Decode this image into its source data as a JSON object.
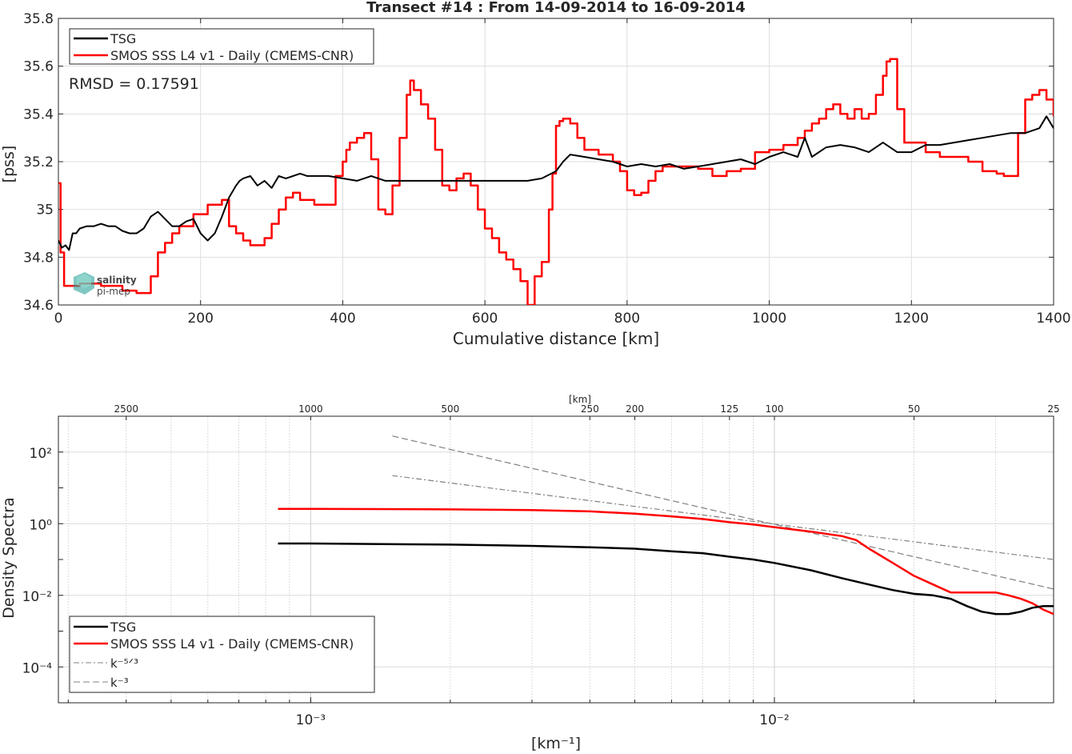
{
  "chart_data": [
    {
      "type": "line",
      "title": "Transect #14 : From 14-09-2014 to 16-09-2014",
      "xlabel": "Cumulative distance [km]",
      "ylabel": "[pss]",
      "xlim": [
        0,
        1400
      ],
      "ylim": [
        34.6,
        35.8
      ],
      "xticks": [
        0,
        200,
        400,
        600,
        800,
        1000,
        1200,
        1400
      ],
      "yticks": [
        34.6,
        34.8,
        35,
        35.2,
        35.4,
        35.6,
        35.8
      ],
      "xtick_labels": [
        "0",
        "200",
        "400",
        "600",
        "800",
        "1000",
        "1200",
        "1400"
      ],
      "ytick_labels": [
        "34.6",
        "34.8",
        "35",
        "35.2",
        "35.4",
        "35.6",
        "35.8"
      ],
      "grid": true,
      "legend_position": "top-left",
      "annotation": "RMSD = 0.17591",
      "watermark": "salinity pi-mep",
      "series": [
        {
          "name": "TSG",
          "color": "#000000",
          "x": [
            0,
            5,
            10,
            15,
            20,
            25,
            30,
            40,
            50,
            60,
            70,
            80,
            90,
            100,
            110,
            120,
            130,
            140,
            150,
            160,
            170,
            180,
            190,
            200,
            210,
            220,
            230,
            240,
            250,
            255,
            260,
            270,
            280,
            290,
            300,
            310,
            320,
            330,
            340,
            350,
            360,
            380,
            400,
            420,
            440,
            460,
            480,
            500,
            520,
            540,
            560,
            580,
            600,
            620,
            640,
            660,
            680,
            700,
            710,
            720,
            740,
            760,
            780,
            800,
            820,
            840,
            860,
            880,
            900,
            920,
            940,
            960,
            980,
            1000,
            1020,
            1040,
            1050,
            1060,
            1080,
            1100,
            1120,
            1140,
            1160,
            1180,
            1200,
            1220,
            1240,
            1260,
            1280,
            1300,
            1320,
            1340,
            1360,
            1380,
            1390,
            1400
          ],
          "y": [
            34.87,
            34.84,
            34.85,
            34.83,
            34.9,
            34.9,
            34.92,
            34.93,
            34.93,
            34.94,
            34.93,
            34.93,
            34.91,
            34.9,
            34.9,
            34.92,
            34.97,
            34.99,
            34.96,
            34.93,
            34.93,
            34.95,
            34.96,
            34.9,
            34.87,
            34.9,
            34.97,
            35.05,
            35.1,
            35.12,
            35.13,
            35.14,
            35.1,
            35.12,
            35.09,
            35.14,
            35.13,
            35.14,
            35.15,
            35.14,
            35.14,
            35.14,
            35.13,
            35.12,
            35.14,
            35.12,
            35.12,
            35.12,
            35.12,
            35.12,
            35.12,
            35.12,
            35.12,
            35.12,
            35.12,
            35.12,
            35.13,
            35.16,
            35.2,
            35.23,
            35.22,
            35.21,
            35.2,
            35.18,
            35.19,
            35.18,
            35.19,
            35.17,
            35.18,
            35.19,
            35.2,
            35.21,
            35.19,
            35.22,
            35.24,
            35.22,
            35.3,
            35.22,
            35.26,
            35.27,
            35.26,
            35.24,
            35.28,
            35.24,
            35.24,
            35.27,
            35.27,
            35.28,
            35.29,
            35.3,
            35.31,
            35.32,
            35.32,
            35.34,
            35.39,
            35.34
          ]
        },
        {
          "name": "SMOS SSS L4 v1 - Daily (CMEMS-CNR)",
          "color": "#ff0000",
          "x": [
            0,
            3,
            8,
            30,
            60,
            90,
            110,
            130,
            140,
            150,
            160,
            170,
            190,
            210,
            230,
            240,
            250,
            260,
            270,
            280,
            290,
            300,
            310,
            320,
            330,
            340,
            360,
            370,
            380,
            390,
            400,
            405,
            410,
            420,
            430,
            440,
            450,
            460,
            470,
            480,
            490,
            495,
            500,
            510,
            520,
            530,
            540,
            550,
            560,
            570,
            580,
            590,
            600,
            610,
            620,
            630,
            640,
            650,
            660,
            670,
            680,
            690,
            695,
            700,
            705,
            710,
            720,
            730,
            740,
            760,
            780,
            790,
            800,
            810,
            820,
            830,
            840,
            850,
            860,
            880,
            900,
            920,
            940,
            960,
            980,
            1000,
            1020,
            1040,
            1050,
            1060,
            1070,
            1080,
            1090,
            1100,
            1110,
            1120,
            1130,
            1140,
            1150,
            1160,
            1165,
            1170,
            1180,
            1190,
            1200,
            1220,
            1240,
            1260,
            1280,
            1300,
            1320,
            1330,
            1340,
            1350,
            1360,
            1370,
            1380,
            1390,
            1400
          ],
          "y": [
            35.11,
            34.82,
            34.68,
            34.69,
            34.68,
            34.66,
            34.65,
            34.72,
            34.82,
            34.86,
            34.9,
            34.93,
            34.98,
            35.02,
            35.04,
            34.93,
            34.9,
            34.87,
            34.85,
            34.85,
            34.88,
            34.94,
            35.0,
            35.05,
            35.07,
            35.04,
            35.02,
            35.02,
            35.02,
            35.14,
            35.2,
            35.25,
            35.28,
            35.3,
            35.32,
            35.21,
            35.0,
            34.98,
            35.1,
            35.3,
            35.48,
            35.54,
            35.5,
            35.44,
            35.38,
            35.25,
            35.1,
            35.08,
            35.13,
            35.15,
            35.1,
            35.0,
            34.92,
            34.88,
            34.82,
            34.79,
            34.75,
            34.7,
            34.6,
            34.72,
            34.78,
            35.0,
            35.15,
            35.35,
            35.37,
            35.38,
            35.36,
            35.3,
            35.25,
            35.23,
            35.2,
            35.16,
            35.08,
            35.06,
            35.07,
            35.12,
            35.16,
            35.18,
            35.18,
            35.18,
            35.17,
            35.14,
            35.16,
            35.17,
            35.24,
            35.25,
            35.27,
            35.3,
            35.33,
            35.36,
            35.38,
            35.42,
            35.44,
            35.4,
            35.38,
            35.42,
            35.38,
            35.4,
            35.48,
            35.56,
            35.62,
            35.63,
            35.42,
            35.28,
            35.28,
            35.24,
            35.22,
            35.22,
            35.2,
            35.16,
            35.15,
            35.14,
            35.14,
            35.32,
            35.46,
            35.48,
            35.5,
            35.46,
            35.39
          ]
        }
      ]
    },
    {
      "type": "line",
      "title": "",
      "xlabel": "[km⁻¹]",
      "ylabel": "Density Spectra",
      "top_axis_label": "[km]",
      "x_scale": "log",
      "y_scale": "log",
      "xlim": [
        0.0002857,
        0.04
      ],
      "ylim": [
        1e-05,
        1000
      ],
      "xticks": [
        0.001,
        0.01
      ],
      "xtick_labels": [
        "10⁻³",
        "10⁻²"
      ],
      "yticks": [
        0.0001,
        0.01,
        1,
        100
      ],
      "ytick_labels": [
        "10⁻⁴",
        "10⁻²",
        "10⁰",
        "10²"
      ],
      "top_ticks_km": [
        2500,
        1000,
        500,
        250,
        200,
        125,
        100,
        50,
        25
      ],
      "top_tick_labels": [
        "2500",
        "1000",
        "500",
        "250",
        "200",
        "125",
        "100",
        "50",
        "25"
      ],
      "grid": true,
      "legend_position": "bottom-left",
      "series": [
        {
          "name": "TSG",
          "color": "#000000",
          "style": "solid",
          "x": [
            0.00085,
            0.001,
            0.002,
            0.003,
            0.004,
            0.005,
            0.006,
            0.007,
            0.008,
            0.009,
            0.01,
            0.012,
            0.014,
            0.016,
            0.018,
            0.02,
            0.022,
            0.024,
            0.026,
            0.028,
            0.03,
            0.032,
            0.034,
            0.036,
            0.038,
            0.04
          ],
          "y": [
            0.28,
            0.28,
            0.26,
            0.24,
            0.22,
            0.2,
            0.17,
            0.15,
            0.12,
            0.1,
            0.08,
            0.05,
            0.03,
            0.02,
            0.014,
            0.011,
            0.01,
            0.008,
            0.005,
            0.0035,
            0.003,
            0.003,
            0.0035,
            0.0045,
            0.005,
            0.005
          ]
        },
        {
          "name": "SMOS SSS L4 v1 - Daily (CMEMS-CNR)",
          "color": "#ff0000",
          "style": "solid",
          "x": [
            0.00085,
            0.001,
            0.002,
            0.003,
            0.004,
            0.005,
            0.006,
            0.007,
            0.008,
            0.009,
            0.01,
            0.012,
            0.014,
            0.015,
            0.016,
            0.018,
            0.02,
            0.022,
            0.024,
            0.026,
            0.028,
            0.03,
            0.032,
            0.034,
            0.036,
            0.038,
            0.04
          ],
          "y": [
            2.6,
            2.6,
            2.5,
            2.4,
            2.2,
            1.9,
            1.6,
            1.35,
            1.1,
            0.95,
            0.8,
            0.6,
            0.45,
            0.35,
            0.2,
            0.08,
            0.035,
            0.02,
            0.012,
            0.012,
            0.012,
            0.012,
            0.01,
            0.008,
            0.006,
            0.004,
            0.003
          ]
        },
        {
          "name": "k⁻⁵ᐟ³",
          "color": "#808080",
          "style": "dashdot",
          "x": [
            0.0015,
            0.04
          ],
          "y": [
            22,
            0.1
          ]
        },
        {
          "name": "k⁻³",
          "color": "#808080",
          "style": "dashed",
          "x": [
            0.0015,
            0.04
          ],
          "y": [
            280,
            0.015
          ]
        }
      ]
    }
  ]
}
